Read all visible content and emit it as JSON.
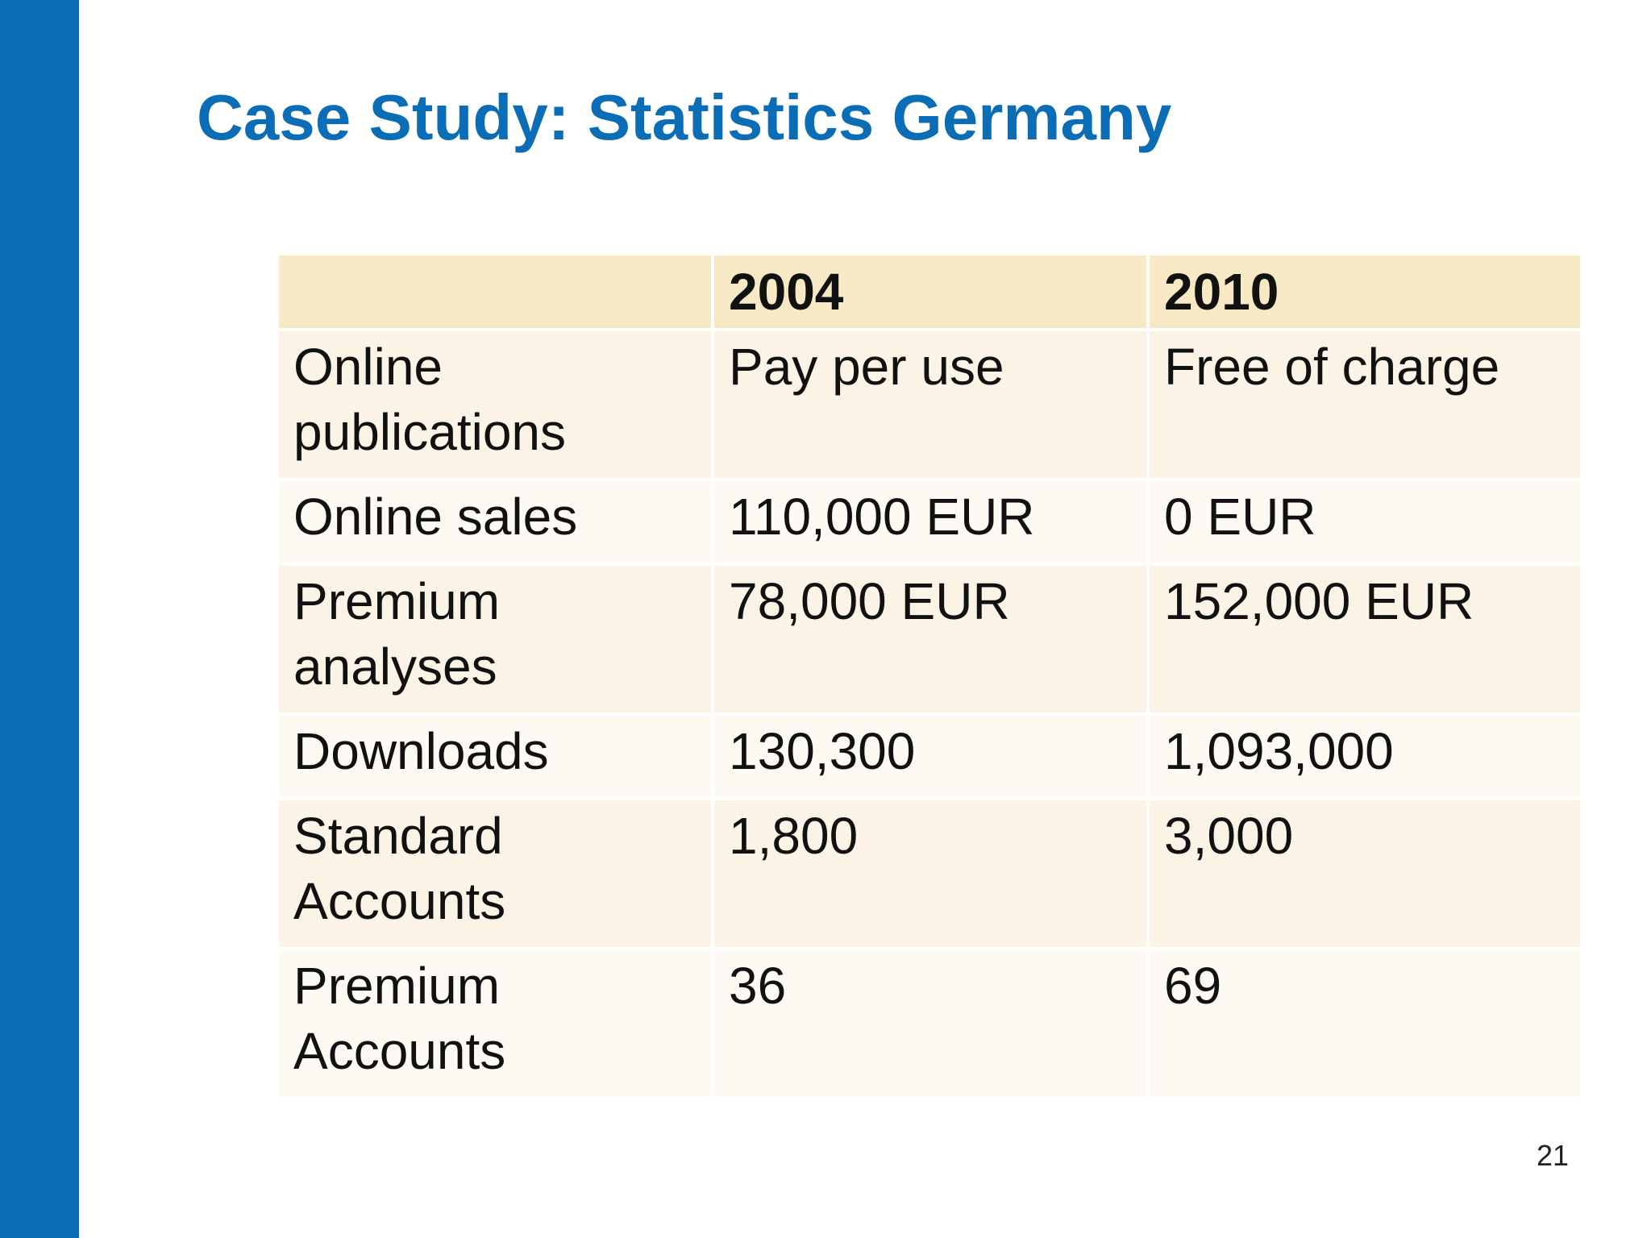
{
  "title": "Case Study: Statistics Germany",
  "table": {
    "headers": [
      "",
      "2004",
      "2010"
    ],
    "rows": [
      [
        "Online publications",
        "Pay per use",
        "Free of charge"
      ],
      [
        "Online sales",
        "110,000 EUR",
        "0 EUR"
      ],
      [
        "Premium analyses",
        "78,000 EUR",
        "152,000 EUR"
      ],
      [
        "Downloads",
        "130,300",
        "1,093,000"
      ],
      [
        "Standard Accounts",
        "1,800",
        "3,000"
      ],
      [
        "Premium Accounts",
        "36",
        "69"
      ]
    ]
  },
  "page_number": "21",
  "colors": {
    "accent_blue": "#0a6db5",
    "header_fill": "#f6e9c3",
    "row_fill_a": "#fbf4e6",
    "row_fill_b": "#fdfaf4"
  }
}
